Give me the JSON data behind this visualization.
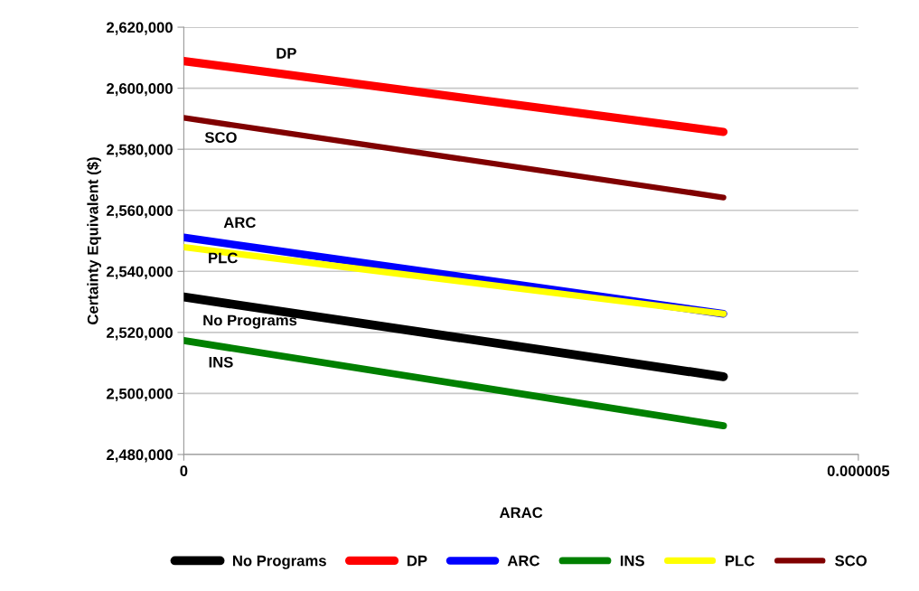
{
  "chart_data": {
    "type": "line",
    "xlabel": "ARAC",
    "ylabel": "Certainty Equivalent ($)",
    "x": [
      0,
      4e-06
    ],
    "series": [
      {
        "name": "No Programs",
        "color": "#000000",
        "values": [
          2531600,
          2505500
        ]
      },
      {
        "name": "DP",
        "color": "#ff0000",
        "values": [
          2608900,
          2585700
        ]
      },
      {
        "name": "ARC",
        "color": "#0000ff",
        "values": [
          2551100,
          2526100
        ]
      },
      {
        "name": "INS",
        "color": "#008000",
        "values": [
          2517300,
          2489400
        ]
      },
      {
        "name": "PLC",
        "color": "#ffff00",
        "values": [
          2547900,
          2526100
        ]
      },
      {
        "name": "SCO",
        "color": "#800000",
        "values": [
          2590300,
          2564200
        ]
      }
    ],
    "xlim": [
      0,
      5e-06
    ],
    "xticks": [
      0,
      {
        "value": 5e-06,
        "label": "0.000005"
      }
    ],
    "ylim": [
      2480000,
      2620000
    ],
    "yticks": [
      {
        "value": 2480000,
        "label": "2,480,000"
      },
      {
        "value": 2500000,
        "label": "2,500,000"
      },
      {
        "value": 2520000,
        "label": "2,520,000"
      },
      {
        "value": 2540000,
        "label": "2,540,000"
      },
      {
        "value": 2560000,
        "label": "2,560,000"
      },
      {
        "value": 2580000,
        "label": "2,580,000"
      },
      {
        "value": 2600000,
        "label": "2,600,000"
      },
      {
        "value": 2620000,
        "label": "2,620,000"
      }
    ],
    "annotations": [
      "DP",
      "SCO",
      "ARC",
      "PLC",
      "No Programs",
      "INS"
    ],
    "grid": "y",
    "legend": "bottom",
    "marker": "none",
    "line_style": "solid"
  }
}
